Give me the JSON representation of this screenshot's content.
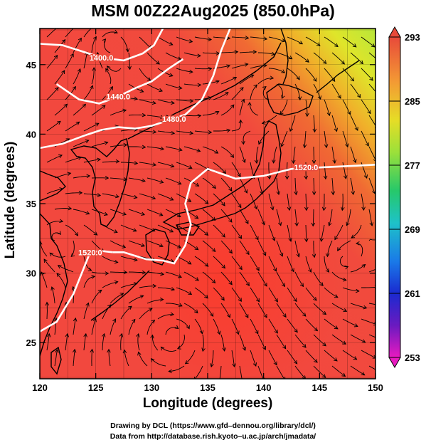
{
  "title": "MSM 00Z22Aug2025 (850.0hPa)",
  "xlabel": "Longitude (degrees)",
  "ylabel": "Latitude  (degrees)",
  "credit_line1": "Drawing by DCL (https://www.gfd–dennou.org/library/dcl/)",
  "credit_line2": "Data from http://database.rish.kyoto–u.ac.jp/arch/jmadata/",
  "map": {
    "lon_range": [
      120,
      150
    ],
    "lat_range": [
      22.4,
      47.6
    ],
    "lon_ticks": [
      120,
      125,
      130,
      135,
      140,
      145,
      150
    ],
    "lat_ticks": [
      25,
      30,
      35,
      40,
      45
    ],
    "lon_tick_labels": [
      "120",
      "125",
      "130",
      "135",
      "140",
      "145",
      "150"
    ],
    "lat_tick_labels": [
      "25",
      "30",
      "35",
      "40",
      "45"
    ]
  },
  "colorbar": {
    "min": 253,
    "max": 293,
    "tick_labels": [
      "293",
      "285",
      "277",
      "269",
      "261",
      "253"
    ],
    "tick_values": [
      293,
      285,
      277,
      269,
      261,
      253
    ]
  },
  "contours": [
    {
      "label": "1400.0",
      "value": 1400,
      "label_pos": [
        125.5,
        45.5
      ],
      "points": [
        [
          120.0,
          46.5
        ],
        [
          122.0,
          46.4
        ],
        [
          124.0,
          45.9
        ],
        [
          125.5,
          45.5
        ],
        [
          127.5,
          45.3
        ],
        [
          129.2,
          45.8
        ],
        [
          130.2,
          46.4
        ],
        [
          131.0,
          47.6
        ]
      ]
    },
    {
      "label": "1440.0",
      "value": 1440,
      "label_pos": [
        127.0,
        42.7
      ],
      "points": [
        [
          121.5,
          43.6
        ],
        [
          123.5,
          42.5
        ],
        [
          125.3,
          42.2
        ],
        [
          127.0,
          42.7
        ],
        [
          128.5,
          43.3
        ],
        [
          130.0,
          43.8
        ],
        [
          131.5,
          44.7
        ],
        [
          132.8,
          45.4
        ]
      ]
    },
    {
      "label": "1480.0",
      "value": 1480,
      "label_pos": [
        132.0,
        41.1
      ],
      "points": [
        [
          120.0,
          39.0
        ],
        [
          122.0,
          39.3
        ],
        [
          124.0,
          39.9
        ],
        [
          125.5,
          40.3
        ],
        [
          127.0,
          40.5
        ],
        [
          128.5,
          40.4
        ],
        [
          130.0,
          40.6
        ],
        [
          131.5,
          41.0
        ],
        [
          133.0,
          41.4
        ],
        [
          134.5,
          42.5
        ],
        [
          135.5,
          44.2
        ],
        [
          136.2,
          46.0
        ],
        [
          137.0,
          47.6
        ]
      ]
    },
    {
      "label": "1520.0",
      "value": 1520,
      "label_pos": [
        143.8,
        37.6
      ],
      "points": [
        [
          150.0,
          37.8
        ],
        [
          147.5,
          37.7
        ],
        [
          145.0,
          37.6
        ],
        [
          142.5,
          37.5
        ],
        [
          140.0,
          37.0
        ],
        [
          137.5,
          36.8
        ],
        [
          135.0,
          37.5
        ],
        [
          133.5,
          36.5
        ],
        [
          133.0,
          35.0
        ],
        [
          133.5,
          33.5
        ],
        [
          133.0,
          32.0
        ],
        [
          132.0,
          30.7
        ],
        [
          131.0,
          30.9
        ],
        [
          129.5,
          31.0
        ],
        [
          127.5,
          31.5
        ],
        [
          126.5,
          31.5
        ]
      ]
    },
    {
      "label": "1520.0",
      "value": 1520,
      "label_pos": [
        124.5,
        31.5
      ],
      "points": [
        [
          120.0,
          25.8
        ],
        [
          121.5,
          26.5
        ],
        [
          123.0,
          28.5
        ],
        [
          124.0,
          30.5
        ],
        [
          124.5,
          31.5
        ],
        [
          125.5,
          31.6
        ],
        [
          126.5,
          31.5
        ]
      ]
    }
  ],
  "colors": {
    "field_base": "#f2483e",
    "field_warm": "#ff2a1e",
    "field_cool_green": "#9de032",
    "field_yellow": "#e6e226",
    "contour": "#ffffff",
    "coast": "#000000",
    "streamline": "#000000"
  }
}
